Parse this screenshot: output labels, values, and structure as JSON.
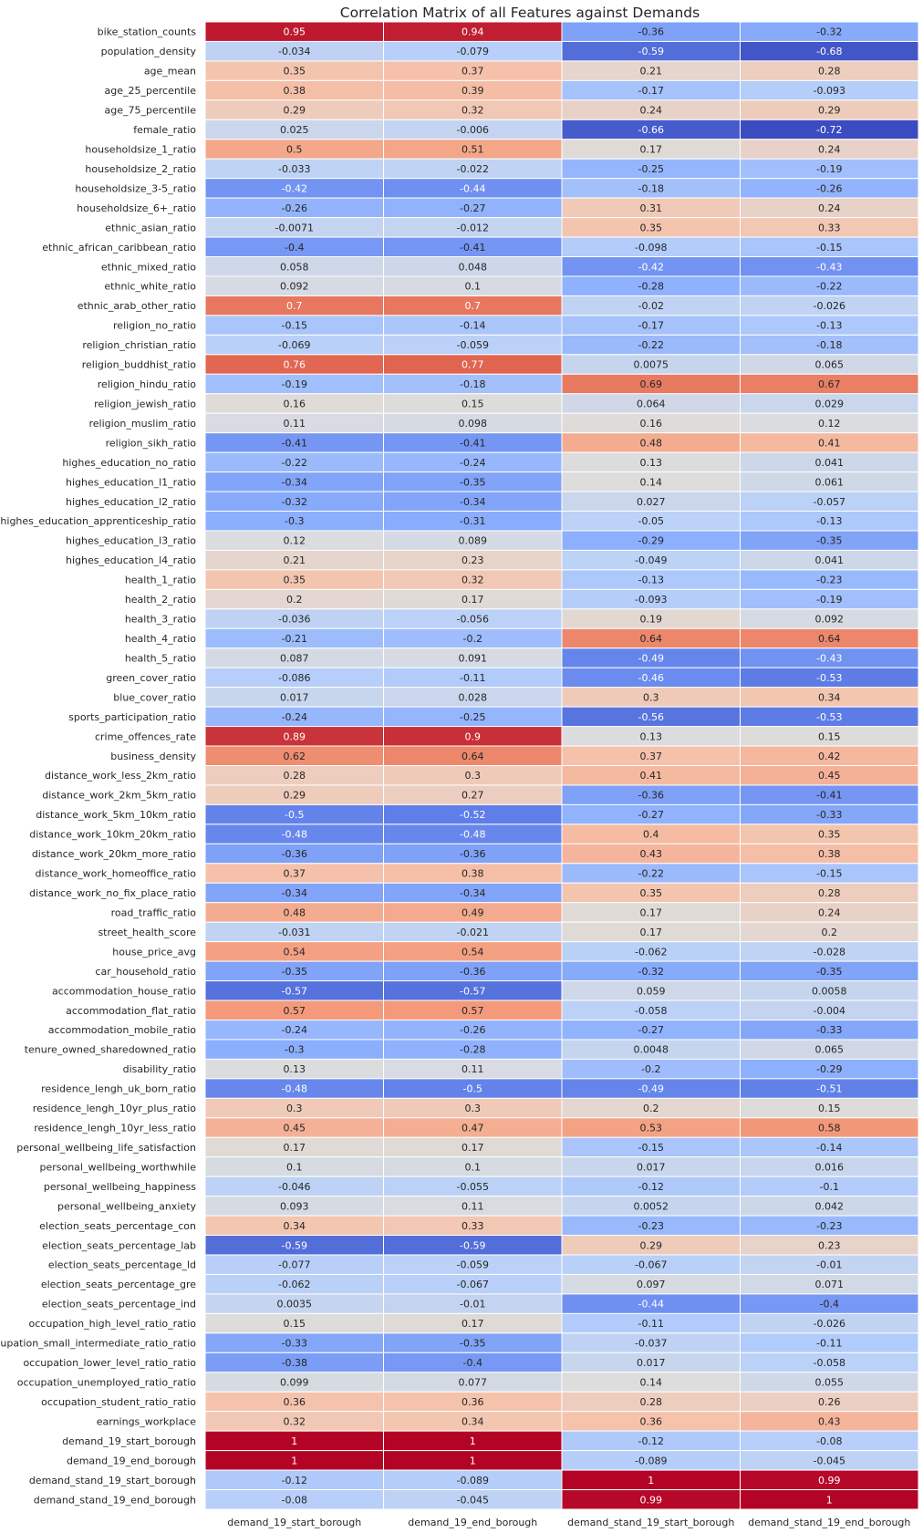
{
  "chart_data": {
    "type": "heatmap",
    "title": "Correlation Matrix of all Features against Demands",
    "colormap": "coolwarm",
    "vmin": -0.72,
    "vmax": 1,
    "grid_lines": "white",
    "columns": [
      "demand_19_start_borough",
      "demand_19_end_borough",
      "demand_stand_19_start_borough",
      "demand_stand_19_end_borough"
    ],
    "rows": [
      "bike_station_counts",
      "population_density",
      "age_mean",
      "age_25_percentile",
      "age_75_percentile",
      "female_ratio",
      "householdsize_1_ratio",
      "householdsize_2_ratio",
      "householdsize_3-5_ratio",
      "householdsize_6+_ratio",
      "ethnic_asian_ratio",
      "ethnic_african_caribbean_ratio",
      "ethnic_mixed_ratio",
      "ethnic_white_ratio",
      "ethnic_arab_other_ratio",
      "religion_no_ratio",
      "religion_christian_ratio",
      "religion_buddhist_ratio",
      "religion_hindu_ratio",
      "religion_jewish_ratio",
      "religion_muslim_ratio",
      "religion_sikh_ratio",
      "highes_education_no_ratio",
      "highes_education_l1_ratio",
      "highes_education_l2_ratio",
      "highes_education_apprenticeship_ratio",
      "highes_education_l3_ratio",
      "highes_education_l4_ratio",
      "health_1_ratio",
      "health_2_ratio",
      "health_3_ratio",
      "health_4_ratio",
      "health_5_ratio",
      "green_cover_ratio",
      "blue_cover_ratio",
      "sports_participation_ratio",
      "crime_offences_rate",
      "business_density",
      "distance_work_less_2km_ratio",
      "distance_work_2km_5km_ratio",
      "distance_work_5km_10km_ratio",
      "distance_work_10km_20km_ratio",
      "distance_work_20km_more_ratio",
      "distance_work_homeoffice_ratio",
      "distance_work_no_fix_place_ratio",
      "road_traffic_ratio",
      "street_health_score",
      "house_price_avg",
      "car_household_ratio",
      "accommodation_house_ratio",
      "accommodation_flat_ratio",
      "accommodation_mobile_ratio",
      "tenure_owned_sharedowned_ratio",
      "disability_ratio",
      "residence_lengh_uk_born_ratio",
      "residence_lengh_10yr_plus_ratio",
      "residence_lengh_10yr_less_ratio",
      "personal_wellbeing_life_satisfaction",
      "personal_wellbeing_worthwhile",
      "personal_wellbeing_happiness",
      "personal_wellbeing_anxiety",
      "election_seats_percentage_con",
      "election_seats_percentage_lab",
      "election_seats_percentage_ld",
      "election_seats_percentage_gre",
      "election_seats_percentage_ind",
      "occupation_high_level_ratio_ratio",
      "occupation_small_intermediate_ratio_ratio",
      "occupation_lower_level_ratio_ratio",
      "occupation_unemployed_ratio_ratio",
      "occupation_student_ratio_ratio",
      "earnings_workplace",
      "demand_19_start_borough",
      "demand_19_end_borough",
      "demand_stand_19_start_borough",
      "demand_stand_19_end_borough"
    ],
    "values": [
      [
        "0.95",
        "0.94",
        "-0.36",
        "-0.32"
      ],
      [
        "-0.034",
        "-0.079",
        "-0.59",
        "-0.68"
      ],
      [
        "0.35",
        "0.37",
        "0.21",
        "0.28"
      ],
      [
        "0.38",
        "0.39",
        "-0.17",
        "-0.093"
      ],
      [
        "0.29",
        "0.32",
        "0.24",
        "0.29"
      ],
      [
        "0.025",
        "-0.006",
        "-0.66",
        "-0.72"
      ],
      [
        "0.5",
        "0.51",
        "0.17",
        "0.24"
      ],
      [
        "-0.033",
        "-0.022",
        "-0.25",
        "-0.19"
      ],
      [
        "-0.42",
        "-0.44",
        "-0.18",
        "-0.26"
      ],
      [
        "-0.26",
        "-0.27",
        "0.31",
        "0.24"
      ],
      [
        "-0.0071",
        "-0.012",
        "0.35",
        "0.33"
      ],
      [
        "-0.4",
        "-0.41",
        "-0.098",
        "-0.15"
      ],
      [
        "0.058",
        "0.048",
        "-0.42",
        "-0.43"
      ],
      [
        "0.092",
        "0.1",
        "-0.28",
        "-0.22"
      ],
      [
        "0.7",
        "0.7",
        "-0.02",
        "-0.026"
      ],
      [
        "-0.15",
        "-0.14",
        "-0.17",
        "-0.13"
      ],
      [
        "-0.069",
        "-0.059",
        "-0.22",
        "-0.18"
      ],
      [
        "0.76",
        "0.77",
        "0.0075",
        "0.065"
      ],
      [
        "-0.19",
        "-0.18",
        "0.69",
        "0.67"
      ],
      [
        "0.16",
        "0.15",
        "0.064",
        "0.029"
      ],
      [
        "0.11",
        "0.098",
        "0.16",
        "0.12"
      ],
      [
        "-0.41",
        "-0.41",
        "0.48",
        "0.41"
      ],
      [
        "-0.22",
        "-0.24",
        "0.13",
        "0.041"
      ],
      [
        "-0.34",
        "-0.35",
        "0.14",
        "0.061"
      ],
      [
        "-0.32",
        "-0.34",
        "0.027",
        "-0.057"
      ],
      [
        "-0.3",
        "-0.31",
        "-0.05",
        "-0.13"
      ],
      [
        "0.12",
        "0.089",
        "-0.29",
        "-0.35"
      ],
      [
        "0.21",
        "0.23",
        "-0.049",
        "0.041"
      ],
      [
        "0.35",
        "0.32",
        "-0.13",
        "-0.23"
      ],
      [
        "0.2",
        "0.17",
        "-0.093",
        "-0.19"
      ],
      [
        "-0.036",
        "-0.056",
        "0.19",
        "0.092"
      ],
      [
        "-0.21",
        "-0.2",
        "0.64",
        "0.64"
      ],
      [
        "0.087",
        "0.091",
        "-0.49",
        "-0.43"
      ],
      [
        "-0.086",
        "-0.11",
        "-0.46",
        "-0.53"
      ],
      [
        "0.017",
        "0.028",
        "0.3",
        "0.34"
      ],
      [
        "-0.24",
        "-0.25",
        "-0.56",
        "-0.53"
      ],
      [
        "0.89",
        "0.9",
        "0.13",
        "0.15"
      ],
      [
        "0.62",
        "0.64",
        "0.37",
        "0.42"
      ],
      [
        "0.28",
        "0.3",
        "0.41",
        "0.45"
      ],
      [
        "0.29",
        "0.27",
        "-0.36",
        "-0.41"
      ],
      [
        "-0.5",
        "-0.52",
        "-0.27",
        "-0.33"
      ],
      [
        "-0.48",
        "-0.48",
        "0.4",
        "0.35"
      ],
      [
        "-0.36",
        "-0.36",
        "0.43",
        "0.38"
      ],
      [
        "0.37",
        "0.38",
        "-0.22",
        "-0.15"
      ],
      [
        "-0.34",
        "-0.34",
        "0.35",
        "0.28"
      ],
      [
        "0.48",
        "0.49",
        "0.17",
        "0.24"
      ],
      [
        "-0.031",
        "-0.021",
        "0.17",
        "0.2"
      ],
      [
        "0.54",
        "0.54",
        "-0.062",
        "-0.028"
      ],
      [
        "-0.35",
        "-0.36",
        "-0.32",
        "-0.35"
      ],
      [
        "-0.57",
        "-0.57",
        "0.059",
        "0.0058"
      ],
      [
        "0.57",
        "0.57",
        "-0.058",
        "-0.004"
      ],
      [
        "-0.24",
        "-0.26",
        "-0.27",
        "-0.33"
      ],
      [
        "-0.3",
        "-0.28",
        "0.0048",
        "0.065"
      ],
      [
        "0.13",
        "0.11",
        "-0.2",
        "-0.29"
      ],
      [
        "-0.48",
        "-0.5",
        "-0.49",
        "-0.51"
      ],
      [
        "0.3",
        "0.3",
        "0.2",
        "0.15"
      ],
      [
        "0.45",
        "0.47",
        "0.53",
        "0.58"
      ],
      [
        "0.17",
        "0.17",
        "-0.15",
        "-0.14"
      ],
      [
        "0.1",
        "0.1",
        "0.017",
        "0.016"
      ],
      [
        "-0.046",
        "-0.055",
        "-0.12",
        "-0.1"
      ],
      [
        "0.093",
        "0.11",
        "0.0052",
        "0.042"
      ],
      [
        "0.34",
        "0.33",
        "-0.23",
        "-0.23"
      ],
      [
        "-0.59",
        "-0.59",
        "0.29",
        "0.23"
      ],
      [
        "-0.077",
        "-0.059",
        "-0.067",
        "-0.01"
      ],
      [
        "-0.062",
        "-0.067",
        "0.097",
        "0.071"
      ],
      [
        "0.0035",
        "-0.01",
        "-0.44",
        "-0.4"
      ],
      [
        "0.15",
        "0.17",
        "-0.11",
        "-0.026"
      ],
      [
        "-0.33",
        "-0.35",
        "-0.037",
        "-0.11"
      ],
      [
        "-0.38",
        "-0.4",
        "0.017",
        "-0.058"
      ],
      [
        "0.099",
        "0.077",
        "0.14",
        "0.055"
      ],
      [
        "0.36",
        "0.36",
        "0.28",
        "0.26"
      ],
      [
        "0.32",
        "0.34",
        "0.36",
        "0.43"
      ],
      [
        "1",
        "1",
        "-0.12",
        "-0.08"
      ],
      [
        "1",
        "1",
        "-0.089",
        "-0.045"
      ],
      [
        "-0.12",
        "-0.089",
        "1",
        "0.99"
      ],
      [
        "-0.08",
        "-0.045",
        "0.99",
        "1"
      ]
    ]
  }
}
